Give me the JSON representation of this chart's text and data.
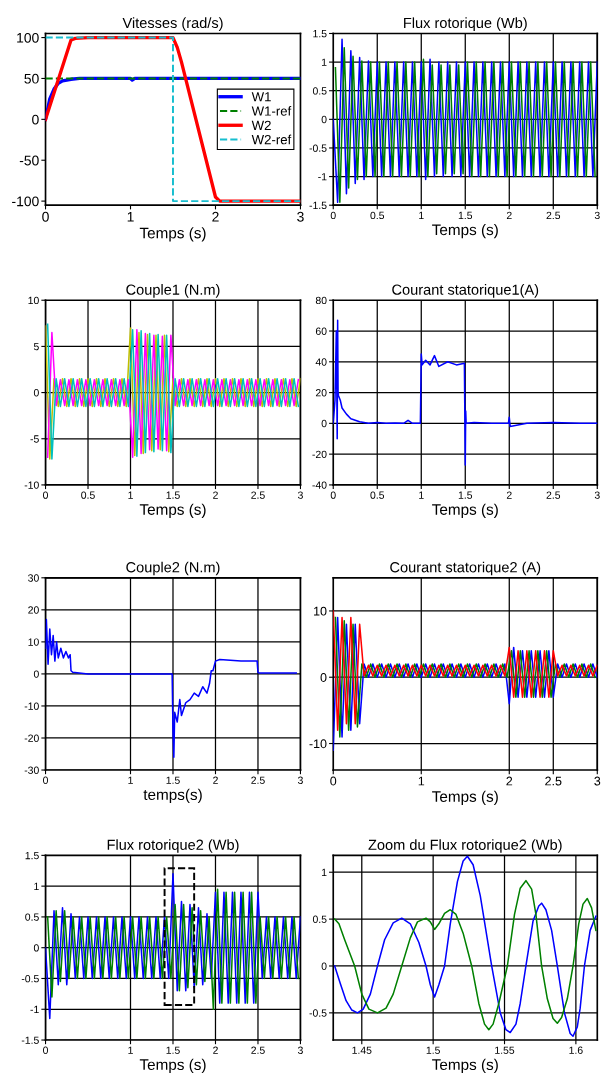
{
  "chart_data": [
    {
      "type": "line",
      "title": "Vitesses (rad/s)",
      "xlabel": "Temps (s)",
      "xlim": [
        0,
        3
      ],
      "xticks": [
        0,
        1,
        2,
        3
      ],
      "ylim": [
        -105,
        105
      ],
      "yticks": [
        -100,
        -50,
        0,
        50,
        100
      ],
      "grid": false,
      "legend": "right",
      "series": [
        {
          "name": "W1",
          "color": "#0000ff",
          "line_style": "solid",
          "x": [
            0,
            0.05,
            0.1,
            0.15,
            0.2,
            0.3,
            0.4,
            1.0,
            1.02,
            1.05,
            3
          ],
          "values": [
            0,
            25,
            37,
            44,
            47,
            49,
            50,
            50,
            48,
            50,
            50
          ]
        },
        {
          "name": "W1-ref",
          "color": "#008000",
          "line_style": "dashed",
          "x": [
            0,
            3
          ],
          "values": [
            50,
            50
          ]
        },
        {
          "name": "W2",
          "color": "#ff0000",
          "line_style": "solid",
          "x": [
            0,
            0.3,
            0.35,
            0.5,
            1.5,
            1.55,
            1.6,
            2.0,
            2.05,
            3
          ],
          "values": [
            0,
            97,
            99,
            100,
            100,
            88,
            70,
            -95,
            -100,
            -100
          ]
        },
        {
          "name": "W2-ref",
          "color": "#17becf",
          "line_style": "dashed",
          "x": [
            0,
            1.5,
            1.5,
            3
          ],
          "values": [
            100,
            100,
            -100,
            -100
          ]
        }
      ]
    },
    {
      "type": "line",
      "title": "Flux rotorique (Wb)",
      "xlabel": "Temps (s)",
      "xlim": [
        0,
        3
      ],
      "xticks": [
        0,
        0.5,
        1,
        1.5,
        2,
        2.5,
        3
      ],
      "ylim": [
        -1.5,
        1.5
      ],
      "yticks": [
        -1.5,
        -1,
        -0.5,
        0,
        0.5,
        1,
        1.5
      ],
      "grid": true,
      "series": [
        {
          "color": "#0000ff",
          "x": [
            0,
            0.05,
            0.1,
            0.15,
            0.2,
            0.25,
            0.3,
            0.35,
            0.4,
            0.45,
            0.5,
            0.55,
            0.6,
            0.65,
            0.7,
            0.75,
            0.8,
            0.85,
            0.9,
            0.95,
            1,
            1.05,
            1.1,
            1.15,
            1.2,
            1.25,
            1.3,
            1.35,
            1.4,
            1.45,
            1.5,
            1.55,
            1.6,
            1.65,
            1.7,
            1.75,
            1.8,
            1.85,
            1.9,
            1.95,
            2,
            2.05,
            2.1,
            2.15,
            2.2,
            2.25,
            2.3,
            2.35,
            2.4,
            2.45,
            2.5,
            2.55,
            2.6,
            2.65,
            2.7,
            2.75,
            2.8,
            2.85,
            2.9,
            2.95,
            3
          ],
          "values": [
            0,
            -1.45,
            1.4,
            -1.3,
            1.2,
            -1.12,
            1.08,
            -1.05,
            1.02,
            -1,
            1,
            -1,
            1,
            -1,
            1,
            -1,
            1,
            -1,
            1,
            -1,
            1,
            -1.05,
            1.05,
            -1,
            1,
            -1,
            1,
            -1,
            1,
            -1,
            1,
            -1,
            1,
            -1,
            1,
            -1,
            1,
            -1,
            1,
            -1,
            1,
            -1,
            1,
            -1,
            1,
            -1,
            1,
            -1,
            1,
            -1,
            1,
            -1,
            1,
            -1,
            1,
            -1,
            1,
            -1,
            1,
            -1,
            1
          ]
        },
        {
          "color": "#008000",
          "x": [
            0.025,
            0.075,
            0.125,
            0.175,
            0.225,
            0.275,
            0.325,
            0.375,
            0.425,
            0.475,
            0.525,
            0.575,
            0.625,
            0.675,
            0.725,
            0.775,
            0.825,
            0.875,
            0.925,
            0.975,
            1.025,
            1.075,
            1.125,
            1.175,
            1.225,
            1.275,
            1.325,
            1.375,
            1.425,
            1.475,
            1.525,
            1.575,
            1.625,
            1.675,
            1.725,
            1.775,
            1.825,
            1.875,
            1.925,
            1.975,
            2.025,
            2.075,
            2.125,
            2.175,
            2.225,
            2.275,
            2.325,
            2.375,
            2.425,
            2.475,
            2.525,
            2.575,
            2.625,
            2.675,
            2.725,
            2.775,
            2.825,
            2.875,
            2.925,
            2.975
          ],
          "values": [
            0.9,
            -1.45,
            1.25,
            -1.2,
            1.1,
            -1.05,
            1.02,
            -1,
            1,
            -1,
            1,
            -1,
            1,
            -1,
            1,
            -1,
            1,
            -1,
            1,
            -1,
            1.05,
            -1,
            0.95,
            -0.95,
            0.95,
            -0.95,
            0.95,
            -0.95,
            0.95,
            -0.95,
            1,
            -1,
            1,
            -1,
            1,
            -1,
            1,
            -1,
            1,
            -1,
            1,
            -1,
            1,
            -1,
            1,
            -1,
            1,
            -1,
            1,
            -1,
            1,
            -1,
            1,
            -1,
            1,
            -1,
            1,
            -1,
            1,
            -1
          ]
        }
      ]
    },
    {
      "type": "line",
      "title": "Couple1 (N.m)",
      "xlabel": "Temps (s)",
      "xlim": [
        0,
        3
      ],
      "xticks": [
        0,
        0.5,
        1,
        1.5,
        2,
        2.5,
        3
      ],
      "ylim": [
        -10,
        10
      ],
      "yticks": [
        -10,
        -5,
        0,
        5,
        10
      ],
      "grid": true,
      "series": [
        {
          "color": "#bfbf00",
          "x": [
            0,
            0.05,
            0.1,
            0.15,
            0.2,
            0.25,
            0.3,
            0.35,
            0.4,
            0.45,
            0.5,
            0.55,
            0.6,
            0.65,
            0.7,
            0.75,
            0.8,
            0.85,
            0.9,
            0.95,
            1,
            1.05,
            1.1,
            1.15,
            1.2,
            1.25,
            1.3,
            1.35,
            1.4,
            1.45,
            1.5,
            1.55,
            1.6,
            1.65,
            1.7,
            1.75,
            1.8,
            1.85,
            1.9,
            1.95,
            2,
            2.05,
            2.1,
            2.15,
            2.2,
            2.25,
            2.3,
            2.35,
            2.4,
            2.45,
            2.5,
            2.55,
            2.6,
            2.65,
            2.7,
            2.75,
            2.8,
            2.85,
            2.9,
            2.95,
            3
          ],
          "values": [
            7.2,
            -7.2,
            1.5,
            -1.5,
            1.5,
            -1.5,
            1.5,
            -1.5,
            1.5,
            -1.5,
            1.5,
            -1.5,
            1.5,
            -1.5,
            1.5,
            -1.5,
            1.5,
            -1.5,
            1.5,
            -1.5,
            7,
            -6.8,
            6.5,
            -6.6,
            6.3,
            -6.3,
            6.2,
            -6.2,
            6.2,
            -6.4,
            1.5,
            -1.5,
            1.5,
            -1.5,
            1.5,
            -1.5,
            1.5,
            -1.5,
            1.5,
            -1.5,
            1.5,
            -1.5,
            1.5,
            -1.5,
            1.5,
            -1.5,
            1.5,
            -1.5,
            1.5,
            -1.5,
            1.5,
            -1.5,
            1.5,
            -1.5,
            1.5,
            -1.5,
            1.5,
            -1.5,
            1.5,
            -1.5,
            1.5
          ]
        },
        {
          "color": "#ff00ff",
          "x": [
            0.025,
            0.075,
            0.125,
            0.175,
            0.225,
            0.275,
            0.325,
            0.375,
            0.425,
            0.475,
            0.525,
            0.575,
            0.625,
            0.675,
            0.725,
            0.775,
            0.825,
            0.875,
            0.925,
            0.975,
            1.025,
            1.075,
            1.125,
            1.175,
            1.225,
            1.275,
            1.325,
            1.375,
            1.425,
            1.475,
            1.525,
            1.575,
            1.625,
            1.675,
            1.725,
            1.775,
            1.825,
            1.875,
            1.925,
            1.975,
            2.025,
            2.075,
            2.125,
            2.175,
            2.225,
            2.275,
            2.325,
            2.375,
            2.425,
            2.475,
            2.525,
            2.575,
            2.625,
            2.675,
            2.725,
            2.775,
            2.825,
            2.875,
            2.925,
            2.975
          ],
          "values": [
            -7,
            6.5,
            -1.4,
            1.4,
            -1.4,
            1.4,
            -1.4,
            1.4,
            -1.4,
            1.4,
            -1.4,
            1.4,
            -1.4,
            1.4,
            -1.4,
            1.4,
            -1.4,
            1.4,
            -1.4,
            1.4,
            -7,
            6.8,
            -6.6,
            6.4,
            -6.2,
            6.2,
            -6.1,
            6.1,
            -6.3,
            6.2,
            -1.4,
            1.4,
            -1.4,
            1.4,
            -1.4,
            1.4,
            -1.4,
            1.4,
            -1.4,
            1.4,
            -1.4,
            1.4,
            -1.4,
            1.4,
            -1.4,
            1.4,
            -1.4,
            1.4,
            -1.4,
            1.4,
            -1.4,
            1.4,
            -1.4,
            1.4,
            -1.4,
            1.4,
            -1.4,
            1.4,
            -1.4,
            1.4
          ]
        },
        {
          "color": "#00bfbf",
          "x": [
            0.025,
            0.075,
            0.125,
            0.175,
            0.225,
            0.275,
            0.325,
            0.375,
            0.425,
            0.475,
            0.525,
            0.575,
            0.625,
            0.675,
            0.725,
            0.775,
            0.825,
            0.875,
            0.925,
            0.975,
            1.025,
            1.075,
            1.125,
            1.175,
            1.225,
            1.275,
            1.325,
            1.375,
            1.425,
            1.475,
            1.525,
            1.575,
            1.625,
            1.675,
            1.725,
            1.775,
            1.825,
            1.875,
            1.925,
            1.975,
            2.025,
            2.075,
            2.125,
            2.175,
            2.225,
            2.275,
            2.325,
            2.375,
            2.425,
            2.475,
            2.525,
            2.575,
            2.625,
            2.675,
            2.725,
            2.775,
            2.825,
            2.875,
            2.925,
            2.975
          ],
          "values": [
            7.4,
            -7.2,
            1.5,
            -1.5,
            1.5,
            -1.5,
            1.5,
            -1.5,
            1.5,
            -1.5,
            1.5,
            -1.5,
            1.5,
            -1.5,
            1.5,
            -1.5,
            1.5,
            -1.5,
            1.5,
            -1.5,
            6.8,
            -6.9,
            6.7,
            -6.5,
            6.4,
            -6.4,
            6.3,
            -6.3,
            6.2,
            -6.5,
            1.5,
            -1.5,
            1.5,
            -1.5,
            1.5,
            -1.5,
            1.5,
            -1.5,
            1.5,
            -1.5,
            1.5,
            -1.5,
            1.5,
            -1.5,
            1.5,
            -1.5,
            1.5,
            -1.5,
            1.5,
            -1.5,
            1.5,
            -1.5,
            1.5,
            -1.5,
            1.5,
            -1.5,
            1.5,
            -1.5,
            1.5,
            -1.5
          ]
        }
      ]
    },
    {
      "type": "line",
      "title": "Courant statorique1(A)",
      "xlabel": "Temps (s)",
      "xlim": [
        0,
        3
      ],
      "xticks": [
        0,
        0.5,
        1,
        1.5,
        2,
        2.5,
        3
      ],
      "ylim": [
        -40,
        80
      ],
      "yticks": [
        -40,
        -20,
        0,
        20,
        40,
        60,
        80
      ],
      "grid": true,
      "series": [
        {
          "color": "#0000ff",
          "x": [
            0,
            0.02,
            0.035,
            0.045,
            0.05,
            0.055,
            0.06,
            0.08,
            0.1,
            0.15,
            0.2,
            0.25,
            0.3,
            0.4,
            0.5,
            0.6,
            0.7,
            0.8,
            0.85,
            0.9,
            0.99,
            1.0,
            1.01,
            1.05,
            1.1,
            1.15,
            1.2,
            1.3,
            1.4,
            1.49,
            1.5,
            1.505,
            1.51,
            1.6,
            1.8,
            1.99,
            2.0,
            2.01,
            2.2,
            2.5,
            2.8,
            3.0
          ],
          "values": [
            0,
            15,
            60,
            -10,
            67,
            20,
            18,
            15,
            10,
            6,
            3,
            2,
            1,
            0,
            0.5,
            0,
            0.3,
            0,
            2,
            0,
            0,
            45,
            38,
            41,
            38,
            44,
            37,
            40,
            38,
            39,
            -27,
            8,
            0,
            0.5,
            0,
            0,
            4,
            -2,
            0,
            0.5,
            0,
            0
          ]
        }
      ]
    },
    {
      "type": "line",
      "title": "Couple2 (N.m)",
      "xlabel": "temps(s)",
      "xlim": [
        0,
        3
      ],
      "xticks": [
        0,
        1,
        1.5,
        2,
        2.5,
        3
      ],
      "ylim": [
        -30,
        30
      ],
      "yticks": [
        -30,
        -20,
        -10,
        0,
        10,
        20,
        30
      ],
      "grid": true,
      "series": [
        {
          "color": "#0000ff",
          "x": [
            0,
            0.01,
            0.03,
            0.05,
            0.07,
            0.09,
            0.11,
            0.13,
            0.15,
            0.18,
            0.21,
            0.24,
            0.27,
            0.29,
            0.3,
            0.32,
            0.5,
            1.49,
            1.5,
            1.51,
            1.52,
            1.55,
            1.58,
            1.6,
            1.65,
            1.7,
            1.75,
            1.8,
            1.85,
            1.9,
            1.93,
            1.95,
            1.97,
            2.0,
            2.05,
            2.3,
            2.49,
            2.5,
            2.51,
            2.95
          ],
          "values": [
            8,
            17,
            3,
            14,
            6,
            12,
            4,
            10,
            5,
            8,
            5,
            7,
            5,
            6,
            1,
            0.5,
            0,
            0,
            -18,
            -26,
            -12,
            -15,
            -8,
            -13,
            -9,
            -8,
            -6,
            -7,
            -4,
            -6,
            -3,
            1,
            1,
            4,
            4.5,
            4,
            4,
            0.5,
            0.3,
            0.3
          ]
        }
      ]
    },
    {
      "type": "line",
      "title": "Courant statorique2 (A)",
      "xlabel": "Temps (s)",
      "xlim": [
        0,
        3
      ],
      "xticks": [
        0,
        1,
        2,
        2.5,
        3
      ],
      "ylim": [
        -14,
        15
      ],
      "yticks": [
        -10,
        0,
        10
      ],
      "grid": true,
      "series": [
        {
          "color": "#0000ff",
          "x": [
            0,
            0.05,
            0.1,
            0.15,
            0.2,
            0.25,
            0.3,
            0.35,
            0.4,
            0.45,
            0.5,
            0.55,
            0.6,
            0.65,
            0.7,
            0.75,
            0.8,
            0.85,
            0.9,
            0.95,
            1,
            1.05,
            1.1,
            1.15,
            1.2,
            1.25,
            1.3,
            1.35,
            1.4,
            1.45,
            1.5,
            1.55,
            1.6,
            1.65,
            1.7,
            1.75,
            1.8,
            1.85,
            1.9,
            1.95,
            2,
            2.05,
            2.1,
            2.15,
            2.2,
            2.25,
            2.3,
            2.35,
            2.4,
            2.45,
            2.5,
            2.55,
            2.6,
            2.65,
            2.7,
            2.75,
            2.8,
            2.85,
            2.9,
            2.95,
            3
          ],
          "values": [
            -11,
            9,
            -9,
            8,
            -8,
            8,
            -7,
            2,
            0,
            2,
            0,
            2,
            0,
            2,
            0,
            2,
            0,
            2,
            0,
            2,
            0,
            2,
            0,
            2,
            0,
            2,
            0,
            2,
            0,
            2,
            0,
            2,
            0,
            2,
            0,
            2,
            0,
            2,
            0,
            2,
            -4,
            4.5,
            -3,
            4,
            -3,
            4,
            -3,
            4,
            -3,
            4,
            -3,
            2,
            0,
            2,
            0,
            2,
            0,
            2,
            0,
            2,
            0
          ]
        },
        {
          "color": "#008000",
          "x": [
            0.025,
            0.075,
            0.125,
            0.175,
            0.225,
            0.275,
            0.325,
            0.375,
            0.425,
            0.475,
            0.525,
            0.575,
            0.625,
            0.675,
            0.725,
            0.775,
            0.825,
            0.875,
            0.925,
            0.975,
            1.025,
            1.075,
            1.125,
            1.175,
            1.225,
            1.275,
            1.325,
            1.375,
            1.425,
            1.475,
            1.525,
            1.575,
            1.625,
            1.675,
            1.725,
            1.775,
            1.825,
            1.875,
            1.925,
            1.975,
            2.025,
            2.075,
            2.125,
            2.175,
            2.225,
            2.275,
            2.325,
            2.375,
            2.425,
            2.475,
            2.525,
            2.575,
            2.625,
            2.675,
            2.725,
            2.775,
            2.825,
            2.875,
            2.925,
            2.975
          ],
          "values": [
            9,
            -9,
            8.5,
            -8,
            8,
            -7.5,
            2,
            0,
            2,
            0,
            2,
            0,
            2,
            0,
            2,
            0,
            2,
            0,
            2,
            0,
            2,
            0,
            2,
            0,
            2,
            0,
            2,
            0,
            2,
            0,
            2,
            0,
            2,
            0,
            2,
            0,
            2,
            0,
            2,
            0,
            4,
            -3,
            4,
            -3,
            4,
            -3,
            4,
            -3,
            4,
            -3,
            2,
            0,
            2,
            0,
            2,
            0,
            2,
            0,
            2,
            0
          ]
        },
        {
          "color": "#ff0000",
          "x": [
            0,
            0.05,
            0.1,
            0.15,
            0.2,
            0.25,
            0.3,
            0.35,
            0.4,
            0.45,
            0.5,
            0.55,
            0.6,
            0.65,
            0.7,
            0.75,
            0.8,
            0.85,
            0.9,
            0.95,
            1,
            1.05,
            1.1,
            1.15,
            1.2,
            1.25,
            1.3,
            1.35,
            1.4,
            1.45,
            1.5,
            1.55,
            1.6,
            1.65,
            1.7,
            1.75,
            1.8,
            1.85,
            1.9,
            1.95,
            2,
            2.05,
            2.1,
            2.15,
            2.2,
            2.25,
            2.3,
            2.35,
            2.4,
            2.45,
            2.5,
            2.55,
            2.6,
            2.65,
            2.7,
            2.75,
            2.8,
            2.85,
            2.9,
            2.95,
            3
          ],
          "values": [
            10,
            -8,
            9,
            -7,
            9,
            -7,
            8,
            0.2,
            1.8,
            0.2,
            1.8,
            0.2,
            1.8,
            0.2,
            1.8,
            0.2,
            1.8,
            0.2,
            1.8,
            0.2,
            1.8,
            0.2,
            1.8,
            0.2,
            1.8,
            0.2,
            1.8,
            0.2,
            1.8,
            0.2,
            1.8,
            0.2,
            1.8,
            0.2,
            1.8,
            0.2,
            1.8,
            0.2,
            1.8,
            0.2,
            4.5,
            -3,
            4,
            -3,
            4,
            -3,
            4,
            -3,
            4,
            -3,
            4,
            0.2,
            1.8,
            0.2,
            1.8,
            0.2,
            1.8,
            0.2,
            1.8,
            0.2,
            1.8
          ]
        }
      ]
    },
    {
      "type": "line",
      "title": "Flux rotorique2 (Wb)",
      "xlabel": "Temps (s)",
      "xlim": [
        0,
        3
      ],
      "xticks": [
        0,
        1,
        1.5,
        2,
        2.5,
        3
      ],
      "ylim": [
        -1.5,
        1.5
      ],
      "yticks": [
        -1.5,
        -1,
        -0.5,
        0,
        0.5,
        1,
        1.5
      ],
      "grid": true,
      "series": [
        {
          "color": "#0000ff",
          "x": [
            0,
            0.05,
            0.1,
            0.15,
            0.2,
            0.25,
            0.3,
            0.35,
            0.4,
            0.45,
            0.5,
            0.55,
            0.6,
            0.65,
            0.7,
            0.75,
            0.8,
            0.85,
            0.9,
            0.95,
            1,
            1.05,
            1.1,
            1.15,
            1.2,
            1.25,
            1.3,
            1.35,
            1.4,
            1.45,
            1.5,
            1.55,
            1.6,
            1.65,
            1.7,
            1.75,
            1.8,
            1.85,
            1.9,
            1.95,
            2,
            2.05,
            2.1,
            2.15,
            2.2,
            2.25,
            2.3,
            2.35,
            2.4,
            2.45,
            2.5,
            2.55,
            2.6,
            2.65,
            2.7,
            2.75,
            2.8,
            2.85,
            2.9,
            2.95,
            3
          ],
          "values": [
            0,
            -1.15,
            0.6,
            -0.6,
            0.65,
            -0.6,
            0.55,
            -0.5,
            0.5,
            -0.5,
            0.5,
            -0.5,
            0.5,
            -0.5,
            0.5,
            -0.5,
            0.5,
            -0.5,
            0.5,
            -0.5,
            0.5,
            -0.5,
            0.5,
            -0.5,
            0.5,
            -0.5,
            0.5,
            -0.5,
            0.5,
            -0.5,
            1.2,
            -0.7,
            0.75,
            -0.7,
            0.7,
            -0.65,
            0.65,
            -0.6,
            0.55,
            -0.5,
            0.9,
            -0.9,
            0.9,
            -0.9,
            0.9,
            -0.9,
            0.9,
            -0.9,
            0.9,
            -0.9,
            0.9,
            -0.5,
            0.5,
            -0.5,
            0.5,
            -0.5,
            0.5,
            -0.5,
            0.5,
            -0.5,
            0.5
          ]
        },
        {
          "color": "#008000",
          "x": [
            0.025,
            0.075,
            0.125,
            0.175,
            0.225,
            0.275,
            0.325,
            0.375,
            0.425,
            0.475,
            0.525,
            0.575,
            0.625,
            0.675,
            0.725,
            0.775,
            0.825,
            0.875,
            0.925,
            0.975,
            1.025,
            1.075,
            1.125,
            1.175,
            1.225,
            1.275,
            1.325,
            1.375,
            1.425,
            1.475,
            1.525,
            1.575,
            1.625,
            1.675,
            1.725,
            1.775,
            1.825,
            1.875,
            1.925,
            1.975,
            2.025,
            2.075,
            2.125,
            2.175,
            2.225,
            2.275,
            2.325,
            2.375,
            2.425,
            2.475,
            2.525,
            2.575,
            2.625,
            2.675,
            2.725,
            2.775,
            2.825,
            2.875,
            2.925,
            2.975
          ],
          "values": [
            0.5,
            -0.8,
            0.6,
            -0.55,
            0.6,
            -0.5,
            0.5,
            -0.5,
            0.5,
            -0.5,
            0.5,
            -0.5,
            0.5,
            -0.5,
            0.5,
            -0.5,
            0.5,
            -0.5,
            0.5,
            -0.5,
            0.5,
            -0.5,
            0.5,
            -0.5,
            0.5,
            -0.5,
            0.5,
            -0.5,
            0.5,
            -0.5,
            0.7,
            -0.7,
            0.7,
            -0.65,
            0.65,
            -0.6,
            0.6,
            -0.55,
            0.5,
            -1.0,
            0.95,
            -0.9,
            0.9,
            -0.9,
            0.9,
            -0.9,
            0.9,
            -0.9,
            0.9,
            -0.9,
            0.5,
            -0.5,
            0.5,
            -0.5,
            0.5,
            -0.5,
            0.5,
            -0.5,
            0.5,
            -0.5
          ]
        }
      ]
    },
    {
      "type": "line",
      "title": "Zoom du Flux rotorique2 (Wb)",
      "xlabel": "Temps (s)",
      "xlim": [
        1.43,
        1.615
      ],
      "xticks": [
        1.45,
        1.5,
        1.55,
        1.6
      ],
      "ylim": [
        -0.79,
        1.18
      ],
      "yticks": [
        -0.5,
        0,
        0.5,
        1
      ],
      "grid": true,
      "series": [
        {
          "color": "#0000ff",
          "x": [
            1.431,
            1.435,
            1.439,
            1.443,
            1.447,
            1.451,
            1.456,
            1.461,
            1.466,
            1.472,
            1.478,
            1.484,
            1.49,
            1.495,
            1.498,
            1.501,
            1.504,
            1.508,
            1.512,
            1.517,
            1.521,
            1.524,
            1.528,
            1.533,
            1.541,
            1.547,
            1.551,
            1.554,
            1.558,
            1.561,
            1.565,
            1.57,
            1.574,
            1.576,
            1.579,
            1.583,
            1.587,
            1.592,
            1.596,
            1.598,
            1.601,
            1.603,
            1.606,
            1.61,
            1.614
          ],
          "values": [
            0,
            -0.19,
            -0.37,
            -0.47,
            -0.5,
            -0.46,
            -0.3,
            0,
            0.28,
            0.46,
            0.51,
            0.45,
            0.25,
            0,
            -0.2,
            -0.33,
            -0.2,
            0,
            0.45,
            0.9,
            1.12,
            1.17,
            1.08,
            0.75,
            0,
            -0.5,
            -0.68,
            -0.71,
            -0.62,
            -0.4,
            0,
            0.48,
            0.64,
            0.67,
            0.6,
            0.38,
            0,
            -0.5,
            -0.72,
            -0.75,
            -0.65,
            -0.45,
            0,
            0.38,
            0.53
          ]
        },
        {
          "color": "#008000",
          "x": [
            1.431,
            1.434,
            1.438,
            1.445,
            1.45,
            1.455,
            1.461,
            1.467,
            1.472,
            1.478,
            1.484,
            1.489,
            1.495,
            1.498,
            1.501,
            1.504,
            1.508,
            1.512,
            1.516,
            1.521,
            1.527,
            1.532,
            1.536,
            1.539,
            1.542,
            1.546,
            1.552,
            1.557,
            1.561,
            1.565,
            1.569,
            1.572,
            1.576,
            1.58,
            1.584,
            1.587,
            1.59,
            1.594,
            1.598,
            1.602,
            1.605,
            1.608,
            1.611,
            1.614
          ],
          "values": [
            0.5,
            0.45,
            0.28,
            0,
            -0.3,
            -0.46,
            -0.5,
            -0.45,
            -0.3,
            0,
            0.3,
            0.47,
            0.51,
            0.47,
            0.39,
            0.45,
            0.56,
            0.6,
            0.55,
            0.35,
            0,
            -0.4,
            -0.62,
            -0.68,
            -0.62,
            -0.4,
            0,
            0.55,
            0.83,
            0.91,
            0.82,
            0.55,
            0,
            -0.35,
            -0.56,
            -0.61,
            -0.55,
            -0.35,
            0,
            0.45,
            0.66,
            0.72,
            0.62,
            0.38
          ]
        }
      ]
    }
  ]
}
